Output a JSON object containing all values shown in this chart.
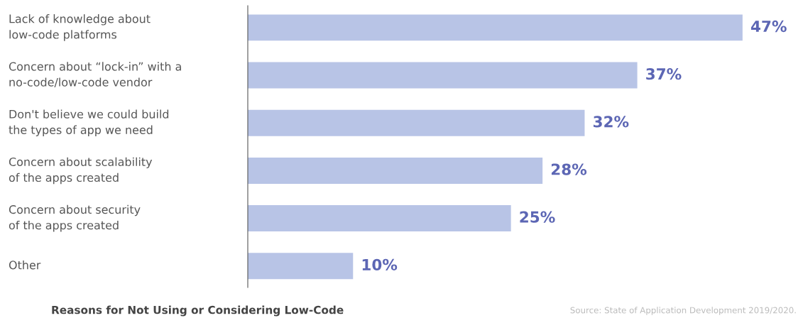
{
  "chart_data": {
    "type": "bar",
    "orientation": "horizontal",
    "title": "Reasons for Not Using or Considering Low-Code",
    "categories": [
      "Lack of knowledge about\nlow-code platforms",
      "Concern about “lock-in” with a\nno-code/low-code vendor",
      "Don't believe we could build\nthe types of app we need",
      "Concern about scalability\nof the apps created",
      "Concern about security\nof the apps created",
      "Other"
    ],
    "values": [
      47,
      37,
      32,
      28,
      25,
      10
    ],
    "value_labels": [
      "47%",
      "37%",
      "32%",
      "28%",
      "25%",
      "10%"
    ],
    "color": "#b8c4e6",
    "annotations": [
      "Source: State of Application Development 2019/2020."
    ]
  }
}
